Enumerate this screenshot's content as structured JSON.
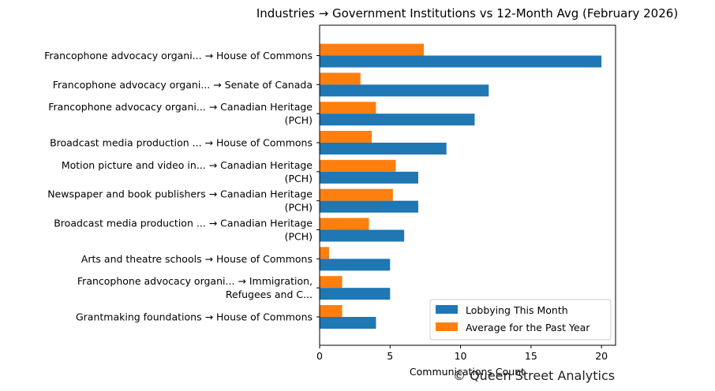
{
  "chart_data": {
    "type": "bar",
    "orientation": "horizontal",
    "title": "Industries → Government Institutions vs 12-Month Avg (February 2026)",
    "xlabel": "Communications Count",
    "xlim": [
      0,
      21
    ],
    "xticks": [
      0,
      5,
      10,
      15,
      20
    ],
    "grid": false,
    "legend_placement": "lower-right",
    "categories": [
      [
        "Francophone advocacy organi... → House of Commons"
      ],
      [
        "Francophone advocacy organi... → Senate of Canada"
      ],
      [
        "Francophone advocacy organi... → Canadian Heritage",
        "(PCH)"
      ],
      [
        "Broadcast media production ... → House of Commons"
      ],
      [
        "Motion picture and video in... → Canadian Heritage",
        "(PCH)"
      ],
      [
        "Newspaper and book publishers → Canadian Heritage",
        "(PCH)"
      ],
      [
        "Broadcast media production ... → Canadian Heritage",
        "(PCH)"
      ],
      [
        "Arts and theatre schools → House of Commons"
      ],
      [
        "Francophone advocacy organi... → Immigration,",
        "Refugees and C..."
      ],
      [
        "Grantmaking foundations → House of Commons"
      ]
    ],
    "series": [
      {
        "name": "Lobbying This Month",
        "color": "#1f77b4",
        "values": [
          20,
          12,
          11,
          9,
          7,
          7,
          6,
          5,
          5,
          4
        ]
      },
      {
        "name": "Average for the Past Year",
        "color": "#ff7f0e",
        "values": [
          7.4,
          2.9,
          4.0,
          3.7,
          5.4,
          5.2,
          3.5,
          0.67,
          1.6,
          1.6
        ]
      }
    ]
  },
  "watermark": "© Queen Street Analytics"
}
